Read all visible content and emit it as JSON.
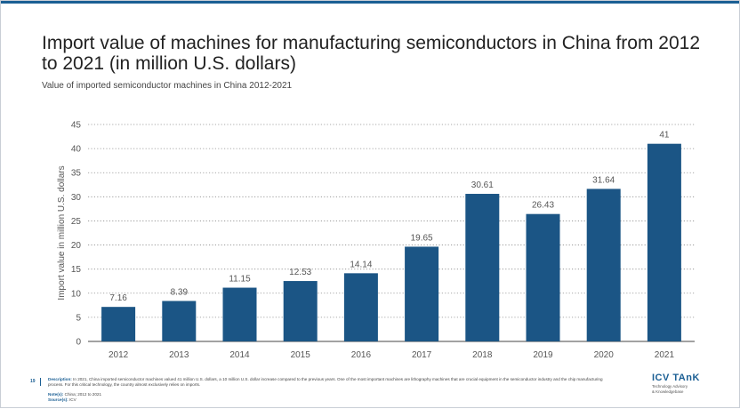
{
  "slide": {
    "title": "Import value of machines for manufacturing semiconductors in China from 2012 to 2021 (in million U.S. dollars)",
    "subtitle": "Value of imported semiconductor machines in China 2012-2021",
    "page_number": "19"
  },
  "footer": {
    "description_label": "Description:",
    "description": "In 2021, China imported semiconductor machines valued 41 million U.S. dollars, a 10 million U.S. dollar increase compared to the previous years. One of the most important machines are lithography machines that are crucial equipment in the semiconductor industry and the chip manufacturing process. For this critical technology, the country almost exclusively relies on imports.",
    "notes_label": "Note(s):",
    "notes": "China; 2012 to 2021",
    "source_label": "Source(s):",
    "source": "ICV"
  },
  "logo": {
    "name": "ICV TAnK",
    "tagline_1": "Technology Advisory",
    "tagline_2": "& Knowledgebase"
  },
  "colors": {
    "bar": "#1b5585",
    "accent": "#1b5f94",
    "grid": "#8c8c8c",
    "axis": "#555555"
  },
  "chart_data": {
    "type": "bar",
    "categories": [
      "2012",
      "2013",
      "2014",
      "2015",
      "2016",
      "2017",
      "2018",
      "2019",
      "2020",
      "2021"
    ],
    "values": [
      7.16,
      8.39,
      11.15,
      12.53,
      14.14,
      19.65,
      30.61,
      26.43,
      31.64,
      41
    ],
    "value_labels": [
      "7.16",
      "8.39",
      "11.15",
      "12.53",
      "14.14",
      "19.65",
      "30.61",
      "26.43",
      "31.64",
      "41"
    ],
    "title": "",
    "xlabel": "",
    "ylabel": "Import value in million U.S. dollars",
    "ylim": [
      0,
      45
    ],
    "yticks": [
      "0",
      "5",
      "10",
      "15",
      "20",
      "25",
      "30",
      "35",
      "40",
      "45"
    ],
    "grid": true,
    "grid_style": "dotted"
  }
}
